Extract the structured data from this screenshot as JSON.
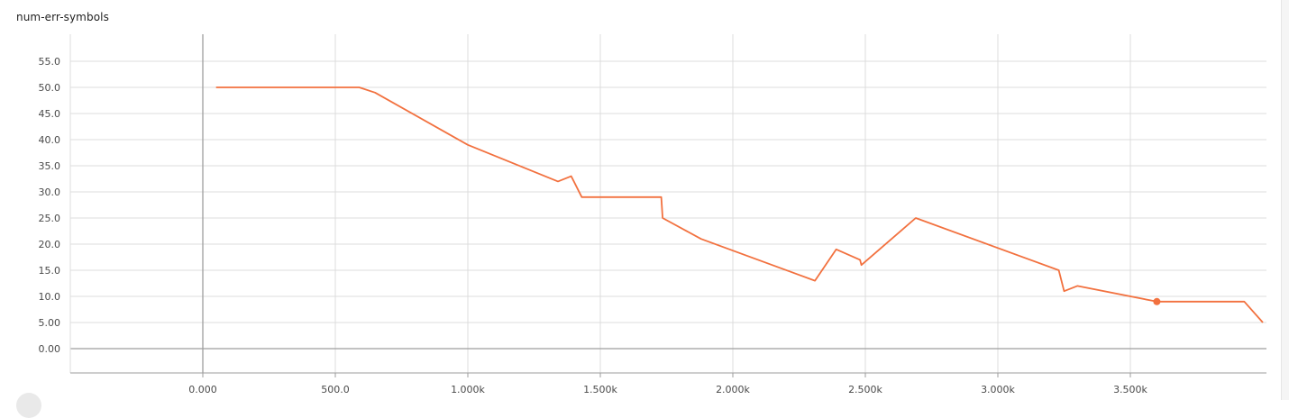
{
  "chart_data": {
    "type": "line",
    "title": "num-err-symbols",
    "xlim": [
      -500,
      4000
    ],
    "ylim": [
      -5,
      60
    ],
    "x_ticks": [
      {
        "value": 0,
        "label": "0.000"
      },
      {
        "value": 500,
        "label": "500.0"
      },
      {
        "value": 1000,
        "label": "1.000k"
      },
      {
        "value": 1500,
        "label": "1.500k"
      },
      {
        "value": 2000,
        "label": "2.000k"
      },
      {
        "value": 2500,
        "label": "2.500k"
      },
      {
        "value": 3000,
        "label": "3.000k"
      },
      {
        "value": 3500,
        "label": "3.500k"
      }
    ],
    "y_ticks": [
      {
        "value": 0,
        "label": "0.00"
      },
      {
        "value": 5,
        "label": "5.00"
      },
      {
        "value": 10,
        "label": "10.0"
      },
      {
        "value": 15,
        "label": "15.0"
      },
      {
        "value": 20,
        "label": "20.0"
      },
      {
        "value": 25,
        "label": "25.0"
      },
      {
        "value": 30,
        "label": "30.0"
      },
      {
        "value": 35,
        "label": "35.0"
      },
      {
        "value": 40,
        "label": "40.0"
      },
      {
        "value": 45,
        "label": "45.0"
      },
      {
        "value": 50,
        "label": "50.0"
      },
      {
        "value": 55,
        "label": "55.0"
      }
    ],
    "series": [
      {
        "color": "#f2713f",
        "points": [
          [
            50,
            50
          ],
          [
            590,
            50
          ],
          [
            650,
            49
          ],
          [
            1000,
            39
          ],
          [
            1340,
            32
          ],
          [
            1390,
            33
          ],
          [
            1430,
            29
          ],
          [
            1730,
            29
          ],
          [
            1735,
            25
          ],
          [
            1880,
            21
          ],
          [
            2310,
            13
          ],
          [
            2390,
            19
          ],
          [
            2480,
            17
          ],
          [
            2485,
            16
          ],
          [
            2690,
            25
          ],
          [
            3230,
            15
          ],
          [
            3250,
            11
          ],
          [
            3300,
            12
          ],
          [
            3600,
            9
          ],
          [
            3930,
            9
          ],
          [
            4000,
            5
          ]
        ],
        "highlight_point": [
          3600,
          9
        ]
      }
    ],
    "grid": true,
    "axis_color": "#9e9e9e",
    "grid_color": "#dcdcdc"
  }
}
